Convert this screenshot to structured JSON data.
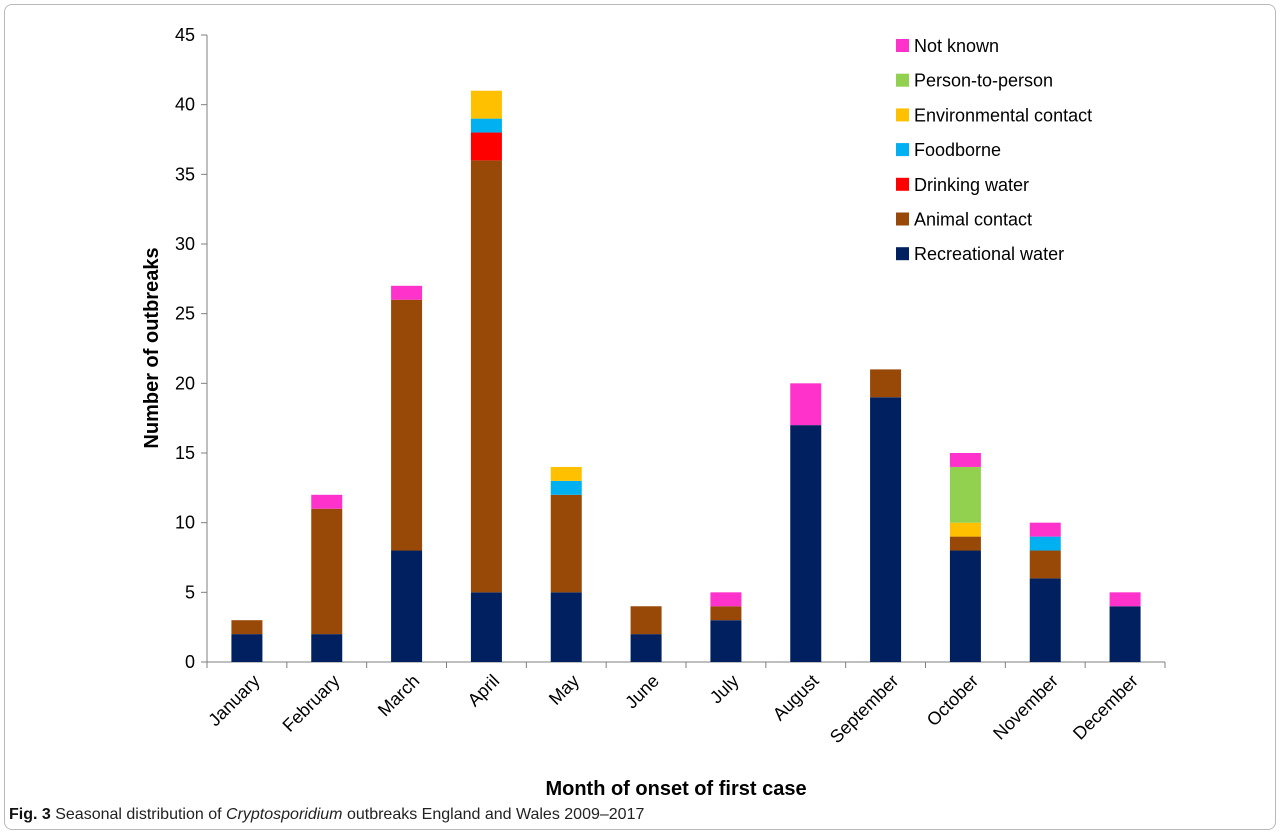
{
  "chart_data": {
    "type": "bar",
    "stacked": true,
    "xlabel": "Month of onset of first case",
    "ylabel": "Number of outbreaks",
    "ylim": [
      0,
      45
    ],
    "yticks": [
      0,
      5,
      10,
      15,
      20,
      25,
      30,
      35,
      40,
      45
    ],
    "grid": false,
    "legend_position": "top-right",
    "categories": [
      "January",
      "February",
      "March",
      "April",
      "May",
      "June",
      "July",
      "August",
      "September",
      "October",
      "November",
      "December"
    ],
    "series": [
      {
        "name": "Recreational water",
        "color": "#002060",
        "values": [
          2,
          2,
          8,
          5,
          5,
          2,
          3,
          17,
          19,
          8,
          6,
          4
        ]
      },
      {
        "name": "Animal contact",
        "color": "#984807",
        "values": [
          1,
          9,
          18,
          31,
          7,
          2,
          1,
          0,
          2,
          1,
          2,
          0
        ]
      },
      {
        "name": "Drinking water",
        "color": "#ff0000",
        "values": [
          0,
          0,
          0,
          2,
          0,
          0,
          0,
          0,
          0,
          0,
          0,
          0
        ]
      },
      {
        "name": "Foodborne",
        "color": "#00b0f0",
        "values": [
          0,
          0,
          0,
          1,
          1,
          0,
          0,
          0,
          0,
          0,
          1,
          0
        ]
      },
      {
        "name": "Environmental contact",
        "color": "#ffc000",
        "values": [
          0,
          0,
          0,
          2,
          1,
          0,
          0,
          0,
          0,
          1,
          0,
          0
        ]
      },
      {
        "name": "Person-to-person",
        "color": "#92d050",
        "values": [
          0,
          0,
          0,
          0,
          0,
          0,
          0,
          0,
          0,
          4,
          0,
          0
        ]
      },
      {
        "name": "Not known",
        "color": "#ff33cc",
        "values": [
          0,
          1,
          1,
          0,
          0,
          0,
          1,
          3,
          0,
          1,
          1,
          1
        ]
      }
    ],
    "legend_order": [
      "Not known",
      "Person-to-person",
      "Environmental contact",
      "Foodborne",
      "Drinking water",
      "Animal contact",
      "Recreational water"
    ]
  },
  "caption": {
    "label": "Fig. 3",
    "text_before": "Seasonal distribution of",
    "italic": "Cryptosporidium",
    "text_after": "outbreaks England and Wales 2009–2017"
  }
}
